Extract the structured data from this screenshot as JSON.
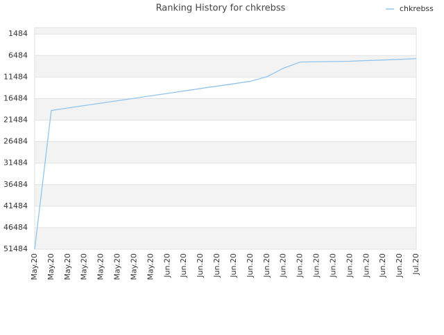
{
  "chart_data": {
    "type": "line",
    "title": "Ranking History for chkrebss",
    "categories": [
      "May.20",
      "May.20",
      "May.20",
      "May.20",
      "May.20",
      "May.20",
      "May.20",
      "May.20",
      "Jun.20",
      "Jun.20",
      "Jun.20",
      "Jun.20",
      "Jun.20",
      "Jun.20",
      "Jun.20",
      "Jun.20",
      "Jun.20",
      "Jun.20",
      "Jun.20",
      "Jun.20",
      "Jun.20",
      "Jun.20",
      "Jun.20",
      "Jul.20"
    ],
    "series": [
      {
        "name": "chkrebss",
        "color": "#90c4ee",
        "values": [
          51484,
          19245,
          18666,
          18103,
          17540,
          16977,
          16415,
          15852,
          15289,
          14711,
          14148,
          13585,
          13023,
          12460,
          11399,
          9405,
          7990,
          7926,
          7862,
          7797,
          7637,
          7508,
          7363,
          7203
        ]
      }
    ],
    "ylim": [
      0,
      51484
    ],
    "y_reversed": true,
    "yticks": [
      1484,
      6484,
      11484,
      16484,
      21484,
      26484,
      31484,
      36484,
      41484,
      46484,
      51484
    ],
    "grid": true,
    "legend": "top-right"
  }
}
